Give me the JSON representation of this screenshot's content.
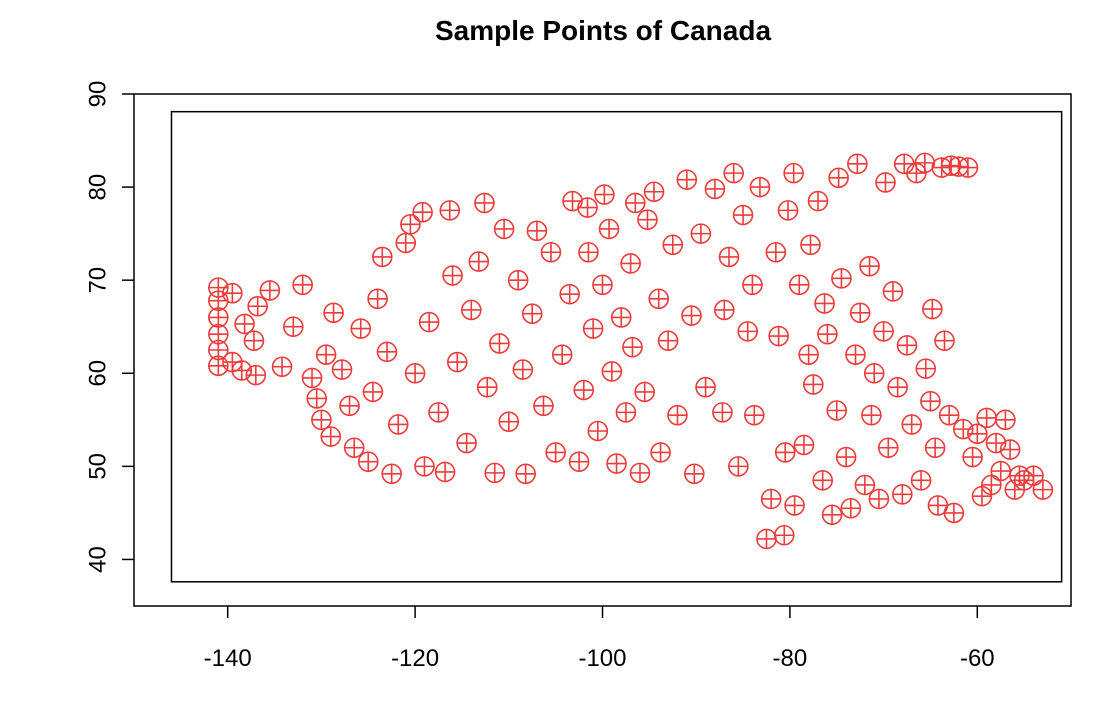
{
  "chart_data": {
    "type": "scatter",
    "title": "Sample Points of Canada",
    "xlabel": "",
    "ylabel": "",
    "xlim": [
      -150,
      -50
    ],
    "ylim": [
      35,
      90
    ],
    "x_ticks": [
      -140,
      -120,
      -100,
      -80,
      -60
    ],
    "y_ticks": [
      40,
      50,
      60,
      70,
      80,
      90
    ],
    "x_tick_labels": [
      "-140",
      "-120",
      "-100",
      "-80",
      "-60"
    ],
    "y_tick_labels": [
      "40",
      "50",
      "60",
      "70",
      "80",
      "90"
    ],
    "extent_box": {
      "x_min": -146,
      "x_max": -51,
      "y_min": 37.6,
      "y_max": 88.1
    },
    "marker_style": "circle-plus",
    "color": "#ee3b3b",
    "grid": false,
    "points": [
      [
        -141,
        60.8
      ],
      [
        -141,
        62.5
      ],
      [
        -141,
        64.2
      ],
      [
        -141,
        66
      ],
      [
        -141,
        67.8
      ],
      [
        -141,
        69.2
      ],
      [
        -139.5,
        68.6
      ],
      [
        -139.5,
        61.2
      ],
      [
        -138.5,
        60.3
      ],
      [
        -137,
        59.8
      ],
      [
        -137.2,
        63.5
      ],
      [
        -138.2,
        65.3
      ],
      [
        -136.8,
        67.2
      ],
      [
        -135.5,
        68.9
      ],
      [
        -134.2,
        60.7
      ],
      [
        -133,
        65
      ],
      [
        -132,
        69.5
      ],
      [
        -131,
        59.5
      ],
      [
        -130.5,
        57.3
      ],
      [
        -130,
        55
      ],
      [
        -129,
        53.2
      ],
      [
        -129.5,
        62
      ],
      [
        -128.7,
        66.5
      ],
      [
        -127.8,
        60.4
      ],
      [
        -127,
        56.5
      ],
      [
        -126.5,
        52
      ],
      [
        -125.8,
        64.8
      ],
      [
        -125,
        50.5
      ],
      [
        -124,
        68
      ],
      [
        -124.5,
        58
      ],
      [
        -123.5,
        72.5
      ],
      [
        -123,
        62.3
      ],
      [
        -122.5,
        49.2
      ],
      [
        -121.8,
        54.5
      ],
      [
        -121,
        74
      ],
      [
        -120.5,
        76
      ],
      [
        -120,
        60
      ],
      [
        -119.2,
        77.3
      ],
      [
        -119,
        50
      ],
      [
        -118.5,
        65.5
      ],
      [
        -117.5,
        55.8
      ],
      [
        -116.3,
        77.5
      ],
      [
        -116,
        70.5
      ],
      [
        -116.8,
        49.4
      ],
      [
        -115.5,
        61.2
      ],
      [
        -114.5,
        52.5
      ],
      [
        -114,
        66.8
      ],
      [
        -113.2,
        72
      ],
      [
        -112.6,
        78.3
      ],
      [
        -112.3,
        58.5
      ],
      [
        -111.5,
        49.3
      ],
      [
        -111,
        63.2
      ],
      [
        -110.5,
        75.5
      ],
      [
        -110,
        54.8
      ],
      [
        -109,
        70
      ],
      [
        -108.5,
        60.4
      ],
      [
        -108.2,
        49.2
      ],
      [
        -107.5,
        66.4
      ],
      [
        -107,
        75.3
      ],
      [
        -106.3,
        56.5
      ],
      [
        -105.5,
        73
      ],
      [
        -105,
        51.5
      ],
      [
        -104.3,
        62
      ],
      [
        -103.5,
        68.5
      ],
      [
        -103.2,
        78.5
      ],
      [
        -102.5,
        50.5
      ],
      [
        -102,
        58.2
      ],
      [
        -101.5,
        73
      ],
      [
        -101.6,
        77.8
      ],
      [
        -101,
        64.8
      ],
      [
        -100.5,
        53.8
      ],
      [
        -100,
        69.5
      ],
      [
        -99.8,
        79.2
      ],
      [
        -99.3,
        75.5
      ],
      [
        -99,
        60.2
      ],
      [
        -98.5,
        50.3
      ],
      [
        -98,
        66
      ],
      [
        -97.5,
        55.8
      ],
      [
        -97,
        71.8
      ],
      [
        -96.5,
        78.3
      ],
      [
        -96.8,
        62.8
      ],
      [
        -96,
        49.3
      ],
      [
        -95.2,
        76.5
      ],
      [
        -95.5,
        58
      ],
      [
        -94.5,
        79.5
      ],
      [
        -94,
        68
      ],
      [
        -93.8,
        51.5
      ],
      [
        -93,
        63.5
      ],
      [
        -92.5,
        73.8
      ],
      [
        -92,
        55.5
      ],
      [
        -91,
        80.8
      ],
      [
        -90.5,
        66.2
      ],
      [
        -90.2,
        49.2
      ],
      [
        -89.5,
        75
      ],
      [
        -89,
        58.5
      ],
      [
        -88,
        79.8
      ],
      [
        -87.2,
        55.8
      ],
      [
        -87,
        66.8
      ],
      [
        -86.5,
        72.5
      ],
      [
        -86,
        81.5
      ],
      [
        -85.5,
        50
      ],
      [
        -85,
        77
      ],
      [
        -84.5,
        64.5
      ],
      [
        -84,
        69.5
      ],
      [
        -83.8,
        55.5
      ],
      [
        -83.2,
        80
      ],
      [
        -82.5,
        42.2
      ],
      [
        -82,
        46.5
      ],
      [
        -81.5,
        73
      ],
      [
        -81.2,
        64
      ],
      [
        -80.6,
        42.6
      ],
      [
        -80.5,
        51.5
      ],
      [
        -80.2,
        77.5
      ],
      [
        -79.6,
        81.5
      ],
      [
        -79.5,
        45.8
      ],
      [
        -79,
        69.5
      ],
      [
        -78.5,
        52.3
      ],
      [
        -78,
        62
      ],
      [
        -77.8,
        73.8
      ],
      [
        -77.5,
        58.8
      ],
      [
        -77,
        78.5
      ],
      [
        -76.5,
        48.5
      ],
      [
        -76.3,
        67.5
      ],
      [
        -76,
        64.2
      ],
      [
        -75.5,
        44.8
      ],
      [
        -75,
        56
      ],
      [
        -74.8,
        81
      ],
      [
        -74.5,
        70.2
      ],
      [
        -74,
        51
      ],
      [
        -73.5,
        45.5
      ],
      [
        -73,
        62
      ],
      [
        -72.8,
        82.5
      ],
      [
        -72.5,
        66.5
      ],
      [
        -72,
        48
      ],
      [
        -71.5,
        71.5
      ],
      [
        -71.3,
        55.5
      ],
      [
        -71,
        60
      ],
      [
        -70.5,
        46.5
      ],
      [
        -70,
        64.5
      ],
      [
        -69.8,
        80.5
      ],
      [
        -69.5,
        52
      ],
      [
        -69,
        68.8
      ],
      [
        -68.5,
        58.5
      ],
      [
        -68,
        47
      ],
      [
        -67.8,
        82.5
      ],
      [
        -67.5,
        63
      ],
      [
        -67,
        54.5
      ],
      [
        -66.5,
        81.5
      ],
      [
        -66,
        48.5
      ],
      [
        -65.6,
        82.6
      ],
      [
        -65.5,
        60.5
      ],
      [
        -65,
        57
      ],
      [
        -64.8,
        66.9
      ],
      [
        -64.5,
        52
      ],
      [
        -64.2,
        45.8
      ],
      [
        -63.8,
        82.1
      ],
      [
        -63.5,
        63.5
      ],
      [
        -63,
        55.5
      ],
      [
        -62.8,
        82.3
      ],
      [
        -62.5,
        45
      ],
      [
        -62,
        82.2
      ],
      [
        -61.5,
        54
      ],
      [
        -61,
        82.1
      ],
      [
        -60.5,
        51
      ],
      [
        -60,
        53.5
      ],
      [
        -59.5,
        46.8
      ],
      [
        -59,
        55.2
      ],
      [
        -58.5,
        48
      ],
      [
        -58,
        52.5
      ],
      [
        -57.5,
        49.5
      ],
      [
        -57,
        55
      ],
      [
        -56.5,
        51.8
      ],
      [
        -56,
        47.5
      ],
      [
        -55.5,
        49
      ],
      [
        -55,
        48.5
      ],
      [
        -54,
        49
      ],
      [
        -53,
        47.5
      ]
    ]
  }
}
